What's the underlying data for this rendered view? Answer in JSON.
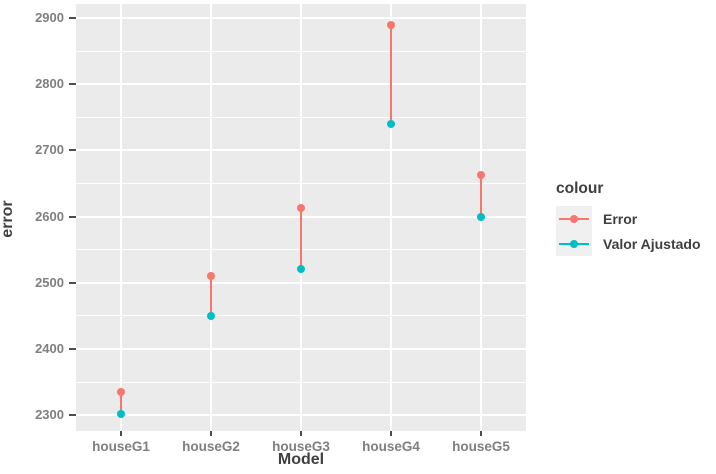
{
  "chart_data": {
    "type": "scatter",
    "style": "pointrange",
    "title": "",
    "categories": [
      "houseG1",
      "houseG2",
      "houseG3",
      "houseG4",
      "houseG5"
    ],
    "series": [
      {
        "name": "Error",
        "color": "#F8766D",
        "values": [
          2335,
          2510,
          2613,
          2889,
          2662
        ]
      },
      {
        "name": "Valor Ajustado",
        "color": "#00BFC4",
        "values": [
          2302,
          2450,
          2520,
          2740,
          2600
        ]
      }
    ],
    "xlabel": "Model",
    "ylabel": "error",
    "yticks": [
      "2300",
      "2400",
      "2500",
      "2600",
      "2700",
      "2800",
      "2900"
    ],
    "ylim": [
      2276,
      2921
    ],
    "minor_step": 50,
    "grid": "on",
    "legend": {
      "title": "colour",
      "position": "right",
      "labels": [
        "Error",
        "Valor Ajustado"
      ]
    },
    "colors": {
      "panel_bg": "#EBEBEB",
      "grid": "#FFFFFF",
      "tick_text": "#7F7F7F",
      "axis_title": "#3F3F3F",
      "tick_mark": "#4D4D4D",
      "legend_key_bg": "#F0F0F0",
      "background": "#FFFFFF"
    }
  }
}
